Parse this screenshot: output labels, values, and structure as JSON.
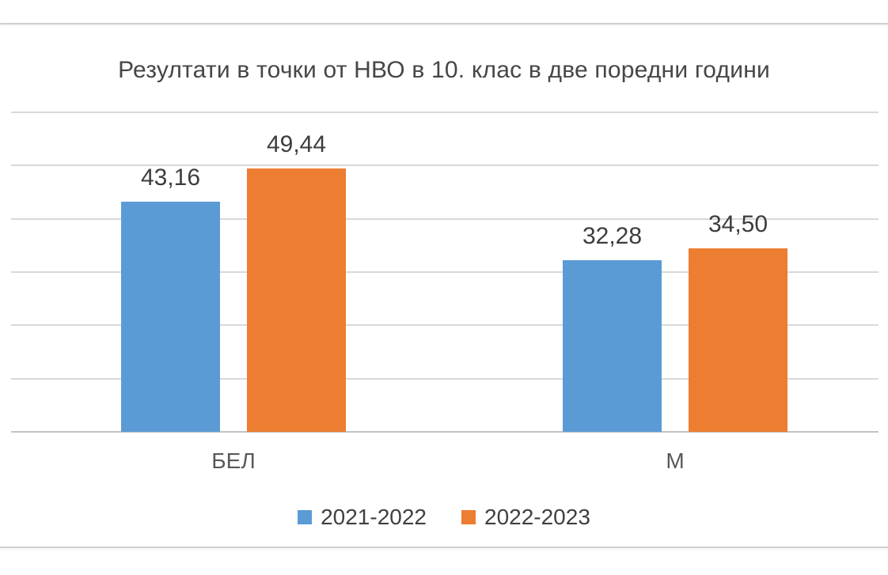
{
  "chart_data": {
    "type": "bar",
    "title": "Резултати в точки от НВО в 10. клас в две поредни години",
    "categories": [
      "БЕЛ",
      "М"
    ],
    "series": [
      {
        "name": "2021-2022",
        "color": "#5B9BD5",
        "values": [
          43.16,
          32.28
        ],
        "labels": [
          "43,16",
          "32,28"
        ]
      },
      {
        "name": "2022-2023",
        "color": "#ED7D31",
        "values": [
          49.44,
          34.5
        ],
        "labels": [
          "49,44",
          "34,50"
        ]
      }
    ],
    "xlabel": "",
    "ylabel": "",
    "ylim": [
      0,
      60
    ],
    "gridline_step": 10,
    "grid": true,
    "y_axis_labels_visible": false,
    "data_labels_visible": true,
    "legend_position": "bottom",
    "colors": {
      "series_blue": "#5B9BD5",
      "series_orange": "#ED7D31",
      "gridline": "#D9D9D9",
      "title_text": "#464646",
      "data_label_text": "#3D3D3D",
      "category_text": "#595959",
      "legend_text": "#404040"
    }
  }
}
